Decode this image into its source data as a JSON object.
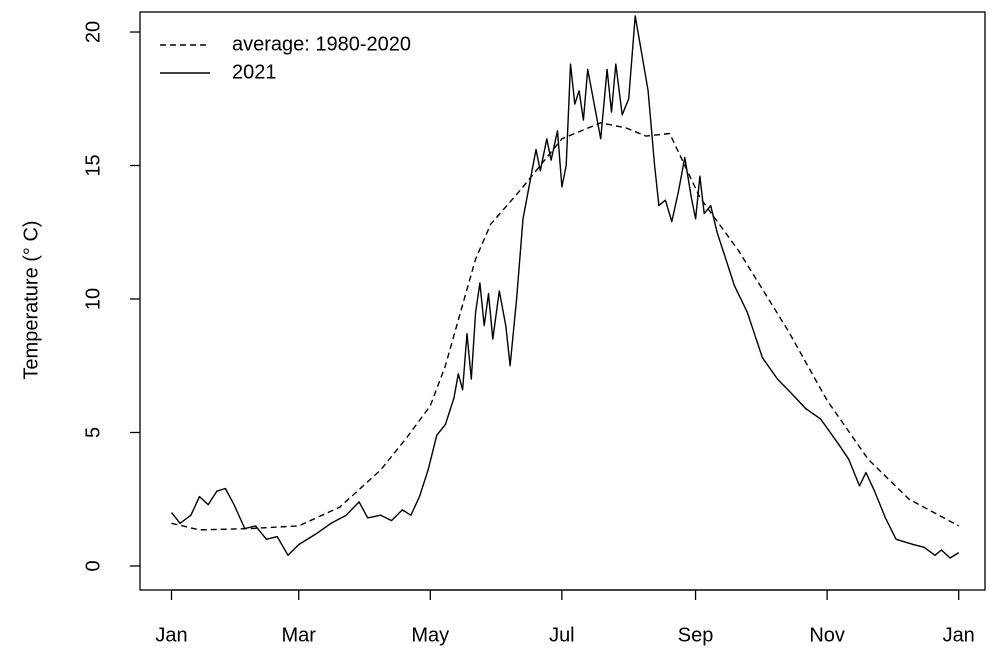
{
  "chart_data": {
    "type": "line",
    "y_label": "Temperature (° C)",
    "xlim": [
      -13.6,
      378.2
    ],
    "ylim": [
      -0.9,
      20.75
    ],
    "xticks": [
      {
        "value": 1,
        "label": "Jan"
      },
      {
        "value": 60,
        "label": "Mar"
      },
      {
        "value": 121,
        "label": "May"
      },
      {
        "value": 182,
        "label": "Jul"
      },
      {
        "value": 244,
        "label": "Sep"
      },
      {
        "value": 305,
        "label": "Nov"
      },
      {
        "value": 366,
        "label": "Jan"
      }
    ],
    "yticks": [
      0,
      5,
      10,
      15,
      20
    ],
    "legend": "top-left",
    "series": [
      {
        "name": "average: 1980-2020",
        "color": "#000000",
        "dash": true,
        "x": [
          1,
          14,
          37,
          60,
          79,
          98,
          110,
          121,
          128,
          135,
          142,
          149,
          163,
          172,
          182,
          200,
          212,
          221,
          232,
          246,
          264,
          287,
          305,
          324,
          343,
          366
        ],
        "values": [
          1.6,
          1.35,
          1.4,
          1.5,
          2.2,
          3.6,
          4.8,
          6.0,
          7.5,
          9.5,
          11.5,
          12.8,
          14.1,
          15.0,
          16.0,
          16.6,
          16.4,
          16.1,
          16.2,
          13.8,
          11.8,
          8.8,
          6.2,
          4.0,
          2.5,
          1.5
        ]
      },
      {
        "name": "2021",
        "color": "#000000",
        "dash": false,
        "x": [
          1,
          5,
          10,
          14,
          18,
          22,
          26,
          30,
          35,
          40,
          45,
          50,
          55,
          60,
          68,
          75,
          82,
          88,
          92,
          98,
          103,
          108,
          112,
          116,
          120,
          124,
          128,
          132,
          134,
          136,
          138,
          140,
          142,
          144,
          146,
          148,
          150,
          153,
          156,
          158,
          161,
          164,
          167,
          170,
          172,
          175,
          177,
          180,
          182,
          184,
          186,
          188,
          190,
          192,
          194,
          197,
          200,
          203,
          205,
          207,
          210,
          213,
          216,
          219,
          222,
          225,
          227,
          230,
          233,
          236,
          239,
          242,
          244,
          246,
          248,
          251,
          254,
          258,
          262,
          268,
          275,
          282,
          288,
          295,
          302,
          310,
          315,
          320,
          323,
          327,
          332,
          337,
          345,
          350,
          355,
          358,
          362,
          366
        ],
        "values": [
          2.0,
          1.6,
          1.9,
          2.6,
          2.3,
          2.8,
          2.9,
          2.3,
          1.4,
          1.5,
          1.0,
          1.1,
          0.4,
          0.8,
          1.2,
          1.6,
          1.9,
          2.4,
          1.8,
          1.9,
          1.7,
          2.1,
          1.9,
          2.6,
          3.6,
          4.9,
          5.3,
          6.3,
          7.2,
          6.6,
          8.7,
          7.0,
          9.5,
          10.6,
          9.0,
          10.2,
          8.5,
          10.3,
          9.0,
          7.5,
          10.0,
          13.0,
          14.3,
          15.6,
          14.8,
          16.0,
          15.2,
          16.3,
          14.2,
          15.0,
          18.8,
          17.3,
          17.8,
          16.7,
          18.6,
          17.3,
          16.0,
          18.6,
          17.0,
          18.8,
          16.9,
          17.5,
          20.6,
          19.2,
          17.8,
          15.0,
          13.5,
          13.7,
          12.9,
          14.0,
          15.3,
          13.8,
          13.0,
          14.6,
          13.2,
          13.5,
          12.5,
          11.5,
          10.5,
          9.5,
          7.8,
          7.0,
          6.5,
          5.9,
          5.5,
          4.6,
          4.0,
          3.0,
          3.5,
          2.8,
          1.8,
          1.0,
          0.8,
          0.7,
          0.4,
          0.6,
          0.3,
          0.5
        ]
      }
    ]
  }
}
